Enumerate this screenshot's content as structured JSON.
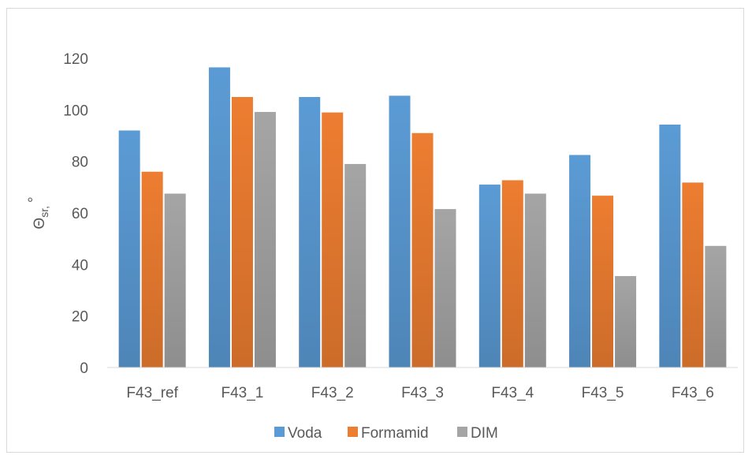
{
  "chart_data": {
    "type": "bar",
    "title": "",
    "xlabel": "",
    "ylabel": "Θsr, °",
    "ylabel_main": "Θ",
    "ylabel_sub": "sr,",
    "ylabel_unit": "°",
    "ylim": [
      0,
      120
    ],
    "yticks": [
      0,
      20,
      40,
      60,
      80,
      100,
      120
    ],
    "grid": false,
    "legend_position": "bottom",
    "categories": [
      "F43_ref",
      "F43_1",
      "F43_2",
      "F43_3",
      "F43_4",
      "F43_5",
      "F43_6"
    ],
    "series": [
      {
        "name": "Voda",
        "color": "#5b9bd5",
        "values": [
          92,
          116.5,
          105,
          105.5,
          71,
          82.5,
          94.3
        ]
      },
      {
        "name": "Formamid",
        "color": "#ed7d31",
        "values": [
          76,
          105,
          99,
          91,
          72.7,
          66.7,
          71.8
        ]
      },
      {
        "name": "DIM",
        "color": "#a5a5a5",
        "values": [
          67.5,
          99.2,
          79,
          61.5,
          67.5,
          35.5,
          47.2
        ]
      }
    ]
  }
}
